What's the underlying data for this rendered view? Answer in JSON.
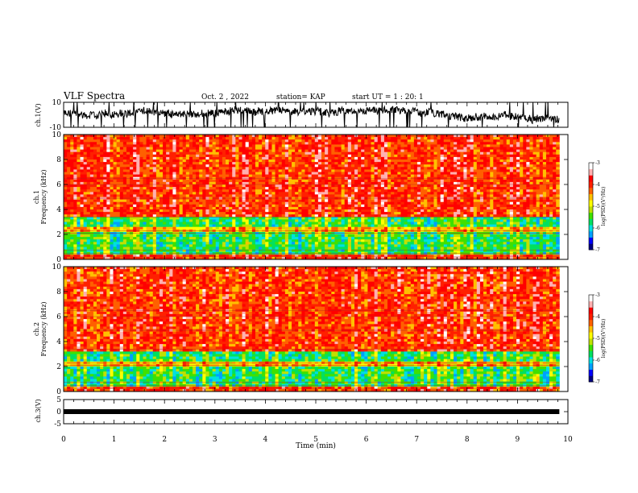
{
  "header": {
    "title": "VLF Spectra",
    "date": "Oct. 2 , 2022",
    "station": "station= KAP",
    "start": "start UT =  1 : 20: 1"
  },
  "chart_data": [
    {
      "type": "line",
      "panel": "ch1-waveform",
      "ylabel": "ch.1(V)",
      "ylim": [
        -10,
        10
      ],
      "yticks": [
        "10",
        "-10"
      ],
      "xlim": [
        0,
        10
      ],
      "x_extent_min": [
        0,
        9.83
      ],
      "description_values": {
        "typical_level_V": [
          -3,
          5
        ]
      }
    },
    {
      "type": "heatmap",
      "panel": "ch1-spectrogram",
      "ylabel": "ch.1\nFrequency (kHz)",
      "ylim": [
        0,
        10
      ],
      "yticks": [
        "0",
        "2",
        "4",
        "6",
        "8",
        "10"
      ],
      "xlim": [
        0,
        10
      ],
      "x_extent_min": [
        0,
        9.83
      ],
      "bands_kHz": [
        {
          "range": [
            0,
            0.5
          ],
          "level": "high"
        },
        {
          "range": [
            0.5,
            2.2
          ],
          "level": "low"
        },
        {
          "range": [
            2.2,
            2.6
          ],
          "level": "mid"
        },
        {
          "range": [
            2.6,
            3.4
          ],
          "level": "low"
        },
        {
          "range": [
            3.4,
            10
          ],
          "level": "high"
        }
      ],
      "colorbar": {
        "label": "log(PSD)(V²/Hz)",
        "range": [
          -7,
          -3
        ],
        "ticks": [
          "-3",
          "-4",
          "-5",
          "-6",
          "-7"
        ]
      }
    },
    {
      "type": "heatmap",
      "panel": "ch2-spectrogram",
      "ylabel": "ch.2\nFrequency (kHz)",
      "ylim": [
        0,
        10
      ],
      "yticks": [
        "0",
        "2",
        "4",
        "6",
        "8",
        "10"
      ],
      "xlim": [
        0,
        10
      ],
      "x_extent_min": [
        0,
        9.83
      ],
      "bands_kHz": [
        {
          "range": [
            0,
            0.4
          ],
          "level": "high"
        },
        {
          "range": [
            0.4,
            2.0
          ],
          "level": "low"
        },
        {
          "range": [
            2.0,
            2.4
          ],
          "level": "mid"
        },
        {
          "range": [
            2.4,
            3.1
          ],
          "level": "low"
        },
        {
          "range": [
            3.1,
            10
          ],
          "level": "high"
        }
      ],
      "colorbar": {
        "label": "log(PSD)(V²/Hz)",
        "range": [
          -7,
          -3
        ],
        "ticks": [
          "-3",
          "-4",
          "-5",
          "-6",
          "-7"
        ]
      }
    },
    {
      "type": "line",
      "panel": "ch3-waveform",
      "ylabel": "ch.3(V)",
      "ylim": [
        -5,
        5
      ],
      "yticks": [
        "5",
        "0",
        "-5"
      ],
      "xlim": [
        0,
        10
      ],
      "x_extent_min": [
        0,
        9.83
      ],
      "level_V": 0
    }
  ],
  "xaxis": {
    "label": "Time (min)",
    "ticks": [
      "0",
      "1",
      "2",
      "3",
      "4",
      "5",
      "6",
      "7",
      "8",
      "9",
      "10"
    ]
  },
  "colors": {
    "colormap": [
      "#000080",
      "#0000ff",
      "#00a0ff",
      "#00e0e0",
      "#00e060",
      "#40e000",
      "#c0e000",
      "#ffff00",
      "#ffc000",
      "#ff6000",
      "#ff2000",
      "#ff0000",
      "#ffb0b0",
      "#ffffff"
    ]
  }
}
